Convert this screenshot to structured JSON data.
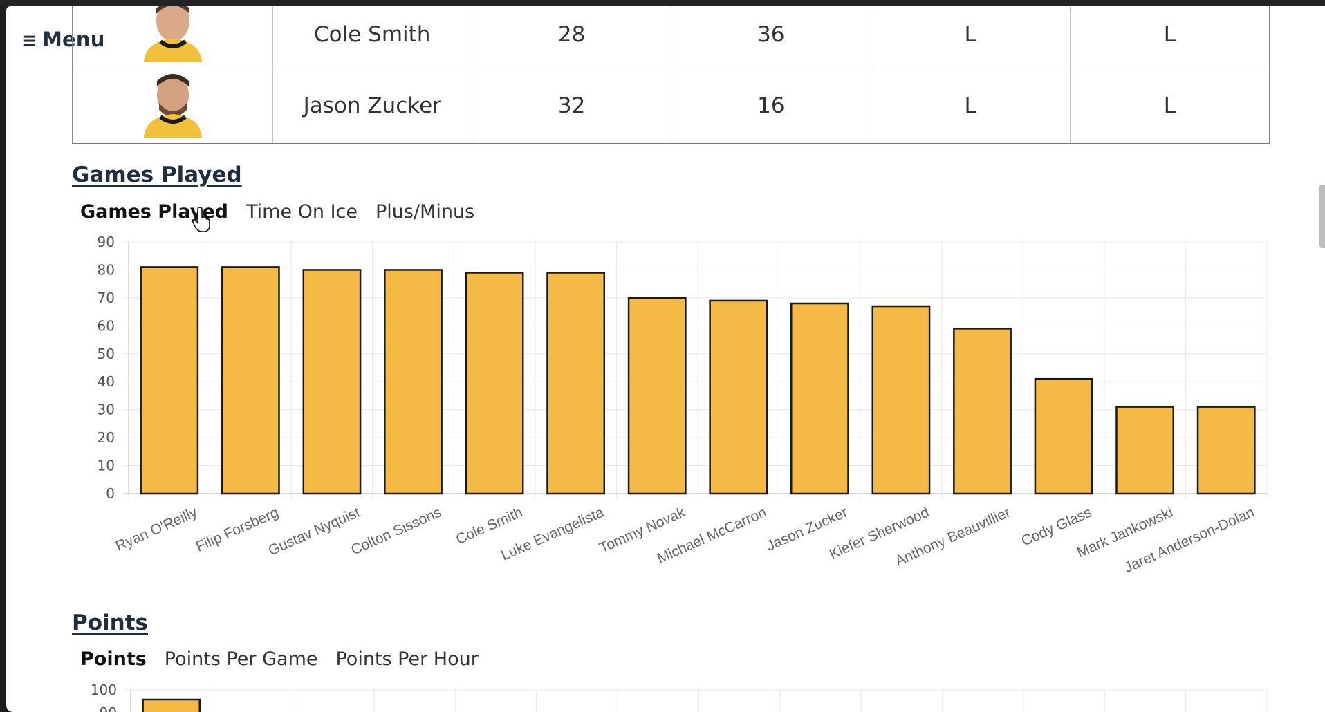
{
  "menu": {
    "icon": "hamburger-icon",
    "label": "Menu"
  },
  "roster": {
    "rows": [
      {
        "player": "Cole Smith",
        "c3": "28",
        "c4": "36",
        "c5": "L",
        "c6": "L"
      },
      {
        "player": "Jason Zucker",
        "c3": "32",
        "c4": "16",
        "c5": "L",
        "c6": "L"
      }
    ]
  },
  "games_section": {
    "title": "Games Played",
    "tabs": [
      "Games Played",
      "Time On Ice",
      "Plus/Minus"
    ],
    "active_tab": "Games Played"
  },
  "points_section": {
    "title": "Points",
    "tabs": [
      "Points",
      "Points Per Game",
      "Points Per Hour"
    ],
    "active_tab": "Points"
  },
  "colors": {
    "bar_fill": "#f5b945",
    "bar_stroke": "#1a1a1a",
    "grid": "#e8e8e8",
    "text": "#333333"
  },
  "chart_data": [
    {
      "type": "bar",
      "categories": [
        "Ryan O'Reilly",
        "Filip Forsberg",
        "Gustav Nyquist",
        "Colton Sissons",
        "Cole Smith",
        "Luke Evangelista",
        "Tommy Novak",
        "Michael McCarron",
        "Jason Zucker",
        "Kiefer Sherwood",
        "Anthony Beauvillier",
        "Cody Glass",
        "Mark Jankowski",
        "Jaret Anderson-Dolan"
      ],
      "values": [
        81,
        81,
        80,
        80,
        79,
        79,
        70,
        69,
        68,
        67,
        59,
        41,
        31,
        31
      ],
      "yticks": [
        "0",
        "10",
        "20",
        "30",
        "40",
        "50",
        "60",
        "70",
        "80",
        "90"
      ],
      "ylim": [
        0,
        90
      ],
      "grid": true
    },
    {
      "type": "bar",
      "yticks": [
        "100",
        "90"
      ],
      "visible_values": [
        100
      ],
      "ylim": [
        0,
        100
      ],
      "grid": true
    }
  ]
}
